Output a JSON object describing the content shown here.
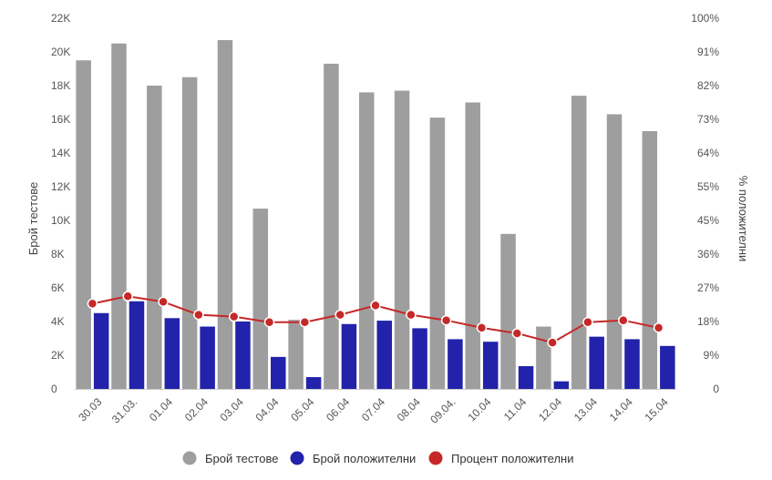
{
  "chart_data": {
    "type": "bar",
    "categories": [
      "30.03",
      "31.03.",
      "01.04",
      "02.04",
      "03.04",
      "04.04",
      "05.04",
      "06.04",
      "07.04",
      "08.04",
      "09.04.",
      "10.04",
      "11.04",
      "12.04",
      "13.04",
      "14.04",
      "15.04"
    ],
    "series": [
      {
        "name": "Брой тестове",
        "type": "bar",
        "axis": "left",
        "color": "#9e9e9e",
        "values": [
          19500,
          20500,
          18000,
          18500,
          20700,
          10700,
          4100,
          19300,
          17600,
          17700,
          16100,
          17000,
          9200,
          3700,
          17400,
          16300,
          15300
        ]
      },
      {
        "name": "Брой положителни",
        "type": "bar",
        "axis": "left",
        "color": "#2222aa",
        "values": [
          4500,
          5200,
          4200,
          3700,
          4000,
          1900,
          700,
          3850,
          4050,
          3600,
          2950,
          2800,
          1350,
          450,
          3100,
          2950,
          2550
        ]
      },
      {
        "name": "Процент положителни",
        "type": "line",
        "axis": "right",
        "color": "#c62828",
        "values": [
          23,
          25,
          23.5,
          20,
          19.5,
          18,
          18,
          20,
          22.5,
          20,
          18.5,
          16.5,
          15,
          12.5,
          18,
          18.5,
          16.5
        ]
      }
    ],
    "y_left": {
      "label": "Брой тестове",
      "range": [
        0,
        22000
      ],
      "ticks": [
        0,
        2000,
        4000,
        6000,
        8000,
        10000,
        12000,
        14000,
        16000,
        18000,
        20000,
        22000
      ],
      "tick_labels": [
        "0",
        "2K",
        "4K",
        "6K",
        "8K",
        "10K",
        "12K",
        "14K",
        "16K",
        "18K",
        "20K",
        "22K"
      ]
    },
    "y_right": {
      "label": "% положителни",
      "range": [
        0,
        100
      ],
      "tick_labels": [
        "0",
        "9%",
        "18%",
        "27%",
        "36%",
        "45%",
        "55%",
        "64%",
        "73%",
        "82%",
        "91%",
        "100%"
      ]
    },
    "legend": {
      "position": "bottom",
      "items": [
        "Брой тестове",
        "Брой положителни",
        "Процент положителни"
      ]
    },
    "grid": false
  }
}
